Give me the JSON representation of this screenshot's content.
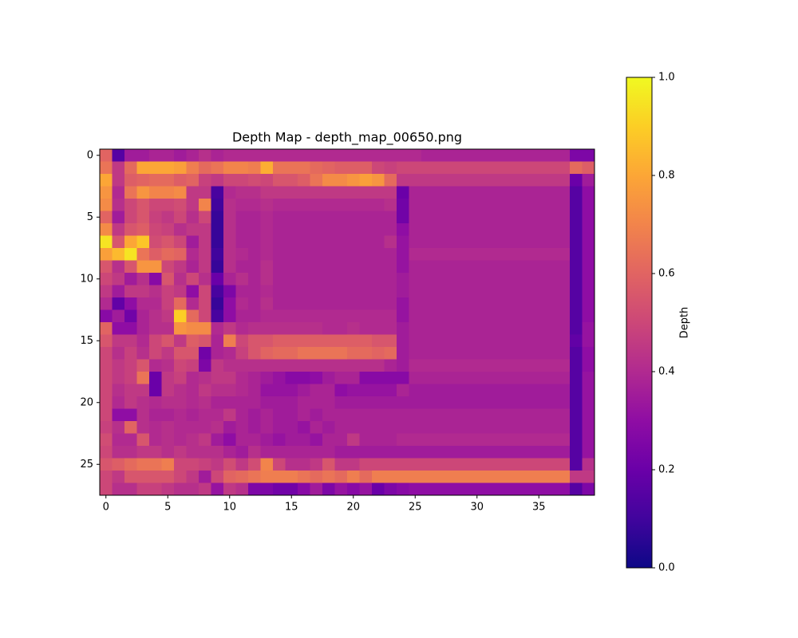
{
  "chart_data": {
    "type": "heatmap",
    "title": "Depth Map - depth_map_00650.png",
    "colormap": "plasma",
    "xlim": [
      -0.5,
      39.5
    ],
    "ylim": [
      27.5,
      -0.5
    ],
    "xticks": [
      0,
      5,
      10,
      15,
      20,
      25,
      30,
      35
    ],
    "yticks": [
      0,
      5,
      10,
      15,
      20,
      25
    ],
    "colorbar": {
      "label": "Depth",
      "lim": [
        0,
        1
      ],
      "ticks": [
        {
          "value": 0,
          "label": "0.0"
        },
        {
          "value": 0.2,
          "label": "0.2"
        },
        {
          "value": 0.4,
          "label": "0.4"
        },
        {
          "value": 0.6,
          "label": "0.6"
        },
        {
          "value": 0.8,
          "label": "0.8"
        },
        {
          "value": 1,
          "label": "1.0"
        }
      ]
    },
    "z": [
      [
        0.6,
        0.15,
        0.35,
        0.35,
        0.38,
        0.38,
        0.35,
        0.38,
        0.42,
        0.38,
        0.4,
        0.4,
        0.4,
        0.4,
        0.4,
        0.4,
        0.4,
        0.4,
        0.4,
        0.4,
        0.4,
        0.4,
        0.4,
        0.4,
        0.4,
        0.4,
        0.38,
        0.38,
        0.38,
        0.38,
        0.38,
        0.38,
        0.38,
        0.38,
        0.38,
        0.38,
        0.38,
        0.38,
        0.25,
        0.25
      ],
      [
        0.65,
        0.45,
        0.62,
        0.8,
        0.8,
        0.8,
        0.78,
        0.68,
        0.62,
        0.65,
        0.7,
        0.7,
        0.68,
        0.82,
        0.65,
        0.65,
        0.65,
        0.62,
        0.6,
        0.58,
        0.58,
        0.58,
        0.5,
        0.48,
        0.5,
        0.5,
        0.5,
        0.5,
        0.5,
        0.5,
        0.5,
        0.5,
        0.5,
        0.5,
        0.5,
        0.5,
        0.5,
        0.5,
        0.62,
        0.58
      ],
      [
        0.8,
        0.45,
        0.58,
        0.6,
        0.62,
        0.62,
        0.58,
        0.6,
        0.48,
        0.45,
        0.5,
        0.5,
        0.52,
        0.5,
        0.55,
        0.55,
        0.58,
        0.65,
        0.72,
        0.72,
        0.75,
        0.78,
        0.75,
        0.62,
        0.45,
        0.45,
        0.45,
        0.45,
        0.45,
        0.45,
        0.45,
        0.45,
        0.45,
        0.45,
        0.45,
        0.45,
        0.45,
        0.45,
        0.2,
        0.35
      ],
      [
        0.75,
        0.4,
        0.65,
        0.75,
        0.7,
        0.7,
        0.72,
        0.45,
        0.45,
        0.12,
        0.4,
        0.42,
        0.42,
        0.45,
        0.45,
        0.45,
        0.45,
        0.45,
        0.45,
        0.45,
        0.45,
        0.45,
        0.45,
        0.45,
        0.2,
        0.38,
        0.38,
        0.38,
        0.38,
        0.38,
        0.38,
        0.38,
        0.38,
        0.38,
        0.38,
        0.38,
        0.38,
        0.38,
        0.15,
        0.3
      ],
      [
        0.72,
        0.42,
        0.5,
        0.55,
        0.5,
        0.5,
        0.52,
        0.45,
        0.7,
        0.1,
        0.42,
        0.4,
        0.4,
        0.42,
        0.4,
        0.4,
        0.4,
        0.4,
        0.4,
        0.4,
        0.4,
        0.4,
        0.4,
        0.42,
        0.22,
        0.38,
        0.38,
        0.38,
        0.38,
        0.38,
        0.38,
        0.38,
        0.38,
        0.38,
        0.38,
        0.38,
        0.38,
        0.38,
        0.15,
        0.3
      ],
      [
        0.6,
        0.35,
        0.5,
        0.55,
        0.48,
        0.45,
        0.5,
        0.42,
        0.5,
        0.08,
        0.42,
        0.38,
        0.38,
        0.4,
        0.38,
        0.38,
        0.38,
        0.38,
        0.38,
        0.38,
        0.38,
        0.38,
        0.38,
        0.38,
        0.22,
        0.38,
        0.38,
        0.38,
        0.38,
        0.38,
        0.38,
        0.38,
        0.38,
        0.38,
        0.38,
        0.38,
        0.38,
        0.38,
        0.15,
        0.3
      ],
      [
        0.72,
        0.45,
        0.55,
        0.58,
        0.5,
        0.48,
        0.42,
        0.45,
        0.45,
        0.08,
        0.42,
        0.38,
        0.38,
        0.4,
        0.38,
        0.38,
        0.38,
        0.38,
        0.38,
        0.38,
        0.38,
        0.38,
        0.38,
        0.38,
        0.3,
        0.38,
        0.38,
        0.38,
        0.38,
        0.38,
        0.38,
        0.38,
        0.38,
        0.38,
        0.38,
        0.38,
        0.38,
        0.38,
        0.15,
        0.3
      ],
      [
        0.95,
        0.55,
        0.8,
        0.88,
        0.52,
        0.55,
        0.5,
        0.35,
        0.45,
        0.08,
        0.42,
        0.38,
        0.38,
        0.4,
        0.38,
        0.38,
        0.38,
        0.38,
        0.38,
        0.38,
        0.38,
        0.38,
        0.38,
        0.42,
        0.32,
        0.38,
        0.38,
        0.38,
        0.38,
        0.38,
        0.38,
        0.38,
        0.38,
        0.38,
        0.38,
        0.38,
        0.38,
        0.38,
        0.15,
        0.3
      ],
      [
        0.78,
        0.85,
        0.95,
        0.65,
        0.58,
        0.62,
        0.6,
        0.4,
        0.45,
        0.1,
        0.42,
        0.4,
        0.38,
        0.4,
        0.38,
        0.38,
        0.38,
        0.38,
        0.38,
        0.38,
        0.38,
        0.38,
        0.38,
        0.38,
        0.32,
        0.4,
        0.4,
        0.4,
        0.4,
        0.4,
        0.4,
        0.4,
        0.4,
        0.4,
        0.4,
        0.4,
        0.4,
        0.4,
        0.15,
        0.3
      ],
      [
        0.55,
        0.42,
        0.55,
        0.75,
        0.75,
        0.5,
        0.45,
        0.38,
        0.45,
        0.08,
        0.42,
        0.38,
        0.38,
        0.42,
        0.38,
        0.38,
        0.38,
        0.38,
        0.38,
        0.38,
        0.38,
        0.38,
        0.38,
        0.38,
        0.32,
        0.38,
        0.38,
        0.38,
        0.38,
        0.38,
        0.38,
        0.38,
        0.38,
        0.38,
        0.38,
        0.38,
        0.38,
        0.38,
        0.15,
        0.3
      ],
      [
        0.5,
        0.45,
        0.35,
        0.42,
        0.28,
        0.55,
        0.42,
        0.5,
        0.42,
        0.2,
        0.38,
        0.42,
        0.38,
        0.42,
        0.38,
        0.38,
        0.38,
        0.38,
        0.38,
        0.38,
        0.38,
        0.38,
        0.38,
        0.38,
        0.35,
        0.38,
        0.38,
        0.38,
        0.38,
        0.38,
        0.38,
        0.38,
        0.38,
        0.38,
        0.38,
        0.38,
        0.38,
        0.38,
        0.15,
        0.3
      ],
      [
        0.45,
        0.35,
        0.45,
        0.45,
        0.42,
        0.48,
        0.45,
        0.3,
        0.5,
        0.12,
        0.25,
        0.38,
        0.38,
        0.4,
        0.38,
        0.38,
        0.38,
        0.38,
        0.38,
        0.38,
        0.38,
        0.38,
        0.38,
        0.38,
        0.35,
        0.38,
        0.38,
        0.38,
        0.38,
        0.38,
        0.38,
        0.38,
        0.38,
        0.38,
        0.38,
        0.38,
        0.38,
        0.38,
        0.15,
        0.3
      ],
      [
        0.4,
        0.18,
        0.3,
        0.4,
        0.4,
        0.48,
        0.62,
        0.4,
        0.5,
        0.08,
        0.3,
        0.4,
        0.38,
        0.42,
        0.38,
        0.38,
        0.38,
        0.38,
        0.38,
        0.38,
        0.38,
        0.38,
        0.38,
        0.38,
        0.32,
        0.38,
        0.38,
        0.38,
        0.38,
        0.38,
        0.38,
        0.38,
        0.38,
        0.38,
        0.38,
        0.38,
        0.38,
        0.38,
        0.15,
        0.3
      ],
      [
        0.28,
        0.35,
        0.22,
        0.38,
        0.42,
        0.45,
        0.9,
        0.62,
        0.5,
        0.12,
        0.3,
        0.38,
        0.38,
        0.4,
        0.4,
        0.4,
        0.4,
        0.4,
        0.4,
        0.4,
        0.4,
        0.4,
        0.4,
        0.4,
        0.32,
        0.38,
        0.38,
        0.38,
        0.38,
        0.38,
        0.38,
        0.38,
        0.38,
        0.38,
        0.38,
        0.38,
        0.38,
        0.38,
        0.15,
        0.3
      ],
      [
        0.6,
        0.3,
        0.3,
        0.38,
        0.42,
        0.42,
        0.75,
        0.72,
        0.72,
        0.4,
        0.45,
        0.4,
        0.42,
        0.42,
        0.42,
        0.42,
        0.42,
        0.42,
        0.4,
        0.4,
        0.42,
        0.4,
        0.4,
        0.4,
        0.35,
        0.38,
        0.38,
        0.38,
        0.38,
        0.38,
        0.38,
        0.38,
        0.38,
        0.38,
        0.38,
        0.38,
        0.38,
        0.38,
        0.15,
        0.32
      ],
      [
        0.55,
        0.45,
        0.45,
        0.4,
        0.5,
        0.55,
        0.45,
        0.58,
        0.55,
        0.38,
        0.68,
        0.5,
        0.55,
        0.55,
        0.58,
        0.58,
        0.58,
        0.58,
        0.58,
        0.58,
        0.58,
        0.58,
        0.55,
        0.55,
        0.35,
        0.38,
        0.38,
        0.38,
        0.38,
        0.38,
        0.38,
        0.38,
        0.38,
        0.38,
        0.38,
        0.38,
        0.38,
        0.38,
        0.18,
        0.32
      ],
      [
        0.5,
        0.42,
        0.48,
        0.42,
        0.5,
        0.45,
        0.55,
        0.55,
        0.22,
        0.38,
        0.4,
        0.48,
        0.55,
        0.6,
        0.62,
        0.62,
        0.65,
        0.65,
        0.65,
        0.65,
        0.62,
        0.62,
        0.6,
        0.62,
        0.35,
        0.38,
        0.38,
        0.38,
        0.38,
        0.38,
        0.38,
        0.38,
        0.38,
        0.38,
        0.38,
        0.38,
        0.38,
        0.38,
        0.15,
        0.3
      ],
      [
        0.5,
        0.45,
        0.48,
        0.55,
        0.4,
        0.42,
        0.5,
        0.48,
        0.25,
        0.45,
        0.42,
        0.42,
        0.42,
        0.42,
        0.42,
        0.42,
        0.42,
        0.42,
        0.42,
        0.42,
        0.42,
        0.42,
        0.42,
        0.38,
        0.35,
        0.4,
        0.4,
        0.4,
        0.4,
        0.4,
        0.4,
        0.4,
        0.4,
        0.4,
        0.4,
        0.4,
        0.4,
        0.4,
        0.15,
        0.3
      ],
      [
        0.5,
        0.45,
        0.48,
        0.65,
        0.2,
        0.45,
        0.48,
        0.4,
        0.42,
        0.45,
        0.45,
        0.4,
        0.38,
        0.35,
        0.32,
        0.28,
        0.28,
        0.3,
        0.35,
        0.38,
        0.38,
        0.28,
        0.28,
        0.28,
        0.28,
        0.38,
        0.38,
        0.38,
        0.38,
        0.38,
        0.38,
        0.38,
        0.38,
        0.38,
        0.38,
        0.38,
        0.38,
        0.38,
        0.15,
        0.32
      ],
      [
        0.5,
        0.42,
        0.45,
        0.45,
        0.2,
        0.45,
        0.42,
        0.4,
        0.45,
        0.42,
        0.42,
        0.4,
        0.38,
        0.32,
        0.32,
        0.32,
        0.35,
        0.38,
        0.38,
        0.3,
        0.32,
        0.32,
        0.32,
        0.32,
        0.38,
        0.35,
        0.35,
        0.35,
        0.35,
        0.35,
        0.35,
        0.35,
        0.35,
        0.35,
        0.35,
        0.35,
        0.35,
        0.35,
        0.15,
        0.32
      ],
      [
        0.5,
        0.4,
        0.45,
        0.42,
        0.4,
        0.42,
        0.42,
        0.4,
        0.42,
        0.38,
        0.38,
        0.38,
        0.38,
        0.35,
        0.35,
        0.35,
        0.38,
        0.38,
        0.38,
        0.35,
        0.35,
        0.35,
        0.35,
        0.35,
        0.35,
        0.35,
        0.35,
        0.35,
        0.35,
        0.35,
        0.35,
        0.35,
        0.35,
        0.35,
        0.35,
        0.35,
        0.35,
        0.35,
        0.15,
        0.32
      ],
      [
        0.5,
        0.3,
        0.3,
        0.42,
        0.38,
        0.38,
        0.4,
        0.38,
        0.4,
        0.4,
        0.45,
        0.38,
        0.35,
        0.38,
        0.35,
        0.35,
        0.38,
        0.35,
        0.38,
        0.38,
        0.38,
        0.38,
        0.38,
        0.38,
        0.38,
        0.38,
        0.38,
        0.38,
        0.38,
        0.38,
        0.38,
        0.38,
        0.38,
        0.38,
        0.38,
        0.38,
        0.38,
        0.38,
        0.15,
        0.32
      ],
      [
        0.48,
        0.42,
        0.6,
        0.42,
        0.4,
        0.42,
        0.4,
        0.4,
        0.4,
        0.42,
        0.35,
        0.38,
        0.35,
        0.38,
        0.35,
        0.35,
        0.32,
        0.38,
        0.35,
        0.38,
        0.38,
        0.38,
        0.38,
        0.38,
        0.38,
        0.38,
        0.38,
        0.38,
        0.38,
        0.38,
        0.38,
        0.38,
        0.38,
        0.38,
        0.38,
        0.38,
        0.38,
        0.38,
        0.15,
        0.32
      ],
      [
        0.52,
        0.4,
        0.4,
        0.55,
        0.4,
        0.42,
        0.4,
        0.42,
        0.45,
        0.35,
        0.3,
        0.38,
        0.38,
        0.35,
        0.32,
        0.35,
        0.35,
        0.32,
        0.38,
        0.38,
        0.45,
        0.38,
        0.38,
        0.38,
        0.4,
        0.4,
        0.4,
        0.4,
        0.4,
        0.4,
        0.4,
        0.4,
        0.4,
        0.4,
        0.4,
        0.4,
        0.4,
        0.4,
        0.15,
        0.32
      ],
      [
        0.5,
        0.42,
        0.42,
        0.45,
        0.45,
        0.42,
        0.45,
        0.42,
        0.42,
        0.42,
        0.38,
        0.35,
        0.42,
        0.38,
        0.38,
        0.38,
        0.38,
        0.38,
        0.38,
        0.35,
        0.35,
        0.35,
        0.35,
        0.35,
        0.35,
        0.35,
        0.35,
        0.35,
        0.35,
        0.35,
        0.35,
        0.35,
        0.35,
        0.35,
        0.35,
        0.35,
        0.35,
        0.35,
        0.15,
        0.32
      ],
      [
        0.55,
        0.58,
        0.62,
        0.65,
        0.65,
        0.68,
        0.5,
        0.5,
        0.48,
        0.45,
        0.52,
        0.45,
        0.52,
        0.7,
        0.5,
        0.42,
        0.42,
        0.45,
        0.55,
        0.45,
        0.45,
        0.5,
        0.5,
        0.5,
        0.5,
        0.5,
        0.5,
        0.5,
        0.5,
        0.5,
        0.5,
        0.5,
        0.5,
        0.5,
        0.5,
        0.5,
        0.5,
        0.5,
        0.15,
        0.42
      ],
      [
        0.5,
        0.45,
        0.55,
        0.55,
        0.55,
        0.55,
        0.5,
        0.45,
        0.35,
        0.5,
        0.6,
        0.62,
        0.65,
        0.68,
        0.68,
        0.68,
        0.65,
        0.62,
        0.65,
        0.62,
        0.68,
        0.62,
        0.68,
        0.68,
        0.68,
        0.68,
        0.68,
        0.68,
        0.68,
        0.68,
        0.68,
        0.68,
        0.68,
        0.68,
        0.68,
        0.68,
        0.68,
        0.68,
        0.45,
        0.45
      ],
      [
        0.5,
        0.42,
        0.42,
        0.48,
        0.48,
        0.45,
        0.42,
        0.42,
        0.45,
        0.32,
        0.45,
        0.42,
        0.25,
        0.25,
        0.22,
        0.22,
        0.28,
        0.35,
        0.25,
        0.32,
        0.28,
        0.32,
        0.2,
        0.25,
        0.28,
        0.3,
        0.3,
        0.3,
        0.3,
        0.3,
        0.3,
        0.3,
        0.3,
        0.3,
        0.3,
        0.3,
        0.3,
        0.3,
        0.15,
        0.25
      ]
    ]
  }
}
